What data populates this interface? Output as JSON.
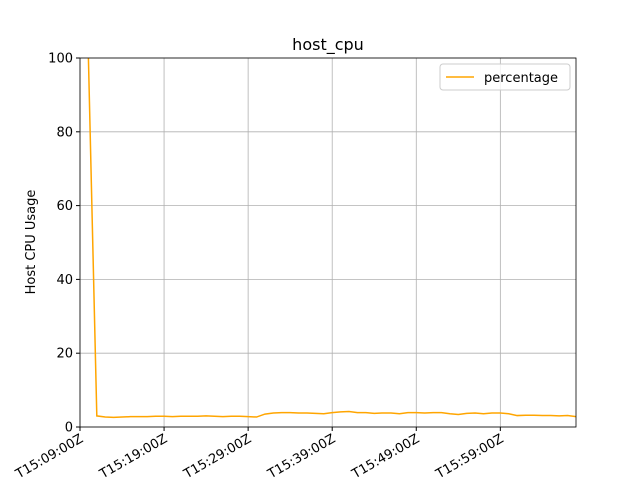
{
  "chart_data": {
    "type": "line",
    "title": "host_cpu",
    "y_label": "Host CPU Usage",
    "x": [
      "T15:10:00Z",
      "T15:11:00Z",
      "T15:12:00Z",
      "T15:13:00Z",
      "T15:14:00Z",
      "T15:15:00Z",
      "T15:16:00Z",
      "T15:17:00Z",
      "T15:18:00Z",
      "T15:19:00Z",
      "T15:20:00Z",
      "T15:21:00Z",
      "T15:22:00Z",
      "T15:23:00Z",
      "T15:24:00Z",
      "T15:25:00Z",
      "T15:26:00Z",
      "T15:27:00Z",
      "T15:28:00Z",
      "T15:29:00Z",
      "T15:30:00Z",
      "T15:31:00Z",
      "T15:32:00Z",
      "T15:33:00Z",
      "T15:34:00Z",
      "T15:35:00Z",
      "T15:36:00Z",
      "T15:37:00Z",
      "T15:38:00Z",
      "T15:39:00Z",
      "T15:40:00Z",
      "T15:41:00Z",
      "T15:42:00Z",
      "T15:43:00Z",
      "T15:44:00Z",
      "T15:45:00Z",
      "T15:46:00Z",
      "T15:47:00Z",
      "T15:48:00Z",
      "T15:49:00Z",
      "T15:50:00Z",
      "T15:51:00Z",
      "T15:52:00Z",
      "T15:53:00Z",
      "T15:54:00Z",
      "T15:55:00Z",
      "T15:56:00Z",
      "T15:57:00Z",
      "T15:58:00Z",
      "T15:59:00Z",
      "T16:00:00Z",
      "T16:01:00Z",
      "T16:02:00Z",
      "T16:03:00Z",
      "T16:04:00Z",
      "T16:05:00Z",
      "T16:06:00Z",
      "T16:07:00Z",
      "T16:08:00Z"
    ],
    "series": [
      {
        "name": "percentage",
        "color": "#ffa500",
        "values": [
          100,
          3.0,
          2.7,
          2.6,
          2.7,
          2.8,
          2.8,
          2.8,
          2.9,
          2.9,
          2.8,
          2.9,
          2.9,
          2.9,
          3.0,
          2.9,
          2.8,
          2.9,
          2.9,
          2.8,
          2.7,
          3.5,
          3.8,
          3.9,
          3.9,
          3.8,
          3.8,
          3.7,
          3.6,
          3.9,
          4.1,
          4.2,
          3.9,
          3.9,
          3.7,
          3.8,
          3.8,
          3.6,
          3.9,
          3.9,
          3.8,
          3.9,
          3.9,
          3.6,
          3.4,
          3.7,
          3.8,
          3.6,
          3.8,
          3.8,
          3.6,
          3.1,
          3.2,
          3.2,
          3.1,
          3.1,
          3.0,
          3.1,
          2.8
        ]
      }
    ],
    "xlim": [
      "T15:09:00Z",
      "T16:08:00Z"
    ],
    "xticks": [
      "T15:09:00Z",
      "T15:19:00Z",
      "T15:29:00Z",
      "T15:39:00Z",
      "T15:49:00Z",
      "T15:59:00Z"
    ],
    "ylim": [
      0,
      100
    ],
    "yticks": [
      0,
      20,
      40,
      60,
      80,
      100
    ],
    "grid": true,
    "legend": "upper right"
  }
}
